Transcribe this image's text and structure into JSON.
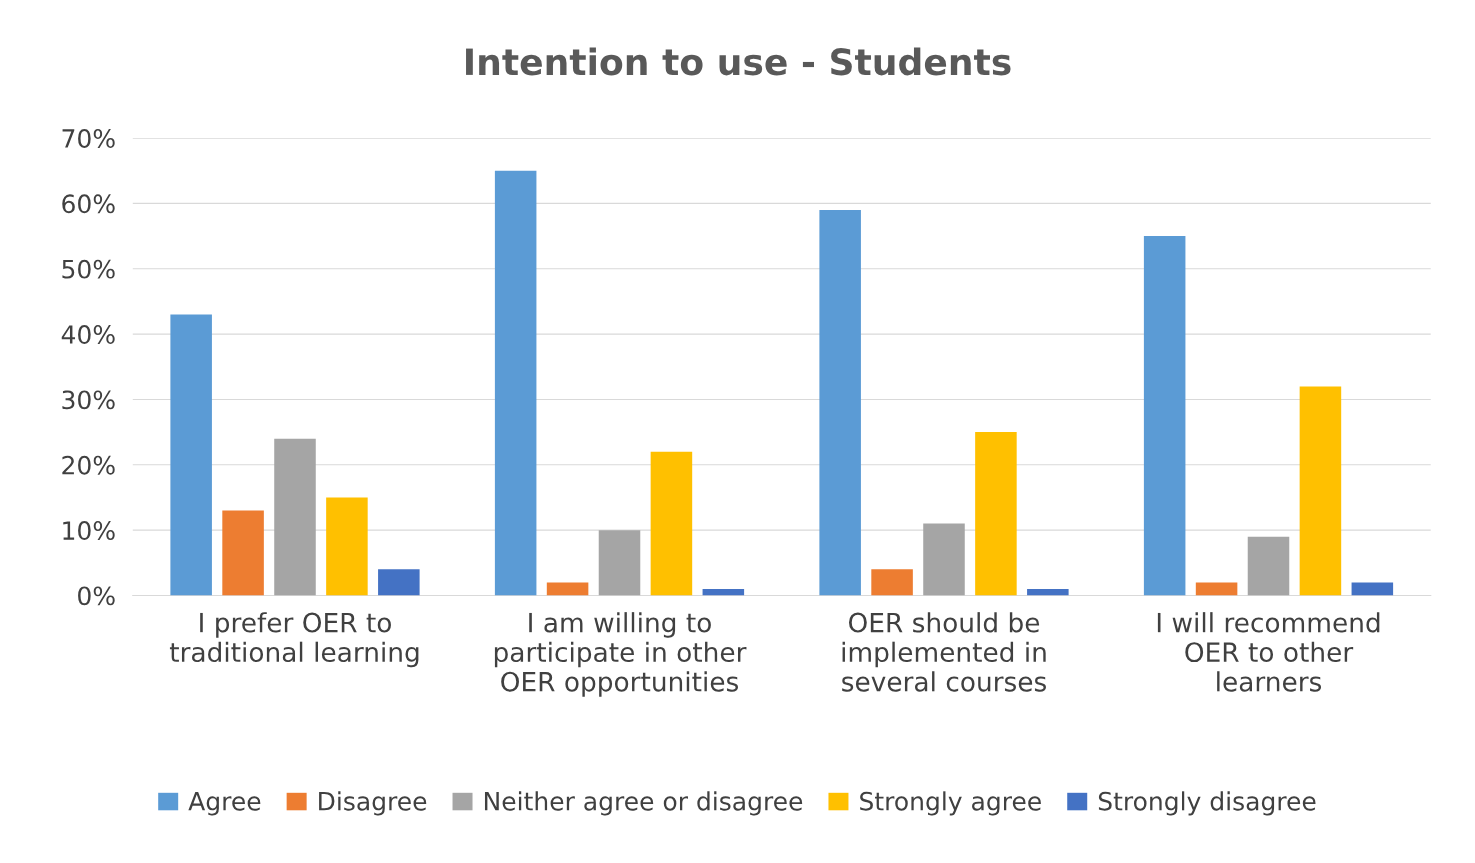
{
  "chart_data": {
    "type": "bar",
    "title": "Intention to use - Students",
    "categories": [
      "I prefer OER to\ntraditional learning",
      "I am willing to\nparticipate in other\nOER opportunities",
      "OER should be\nimplemented in\nseveral courses",
      "I will recommend\nOER to other\nlearners"
    ],
    "series": [
      {
        "name": "Agree",
        "color": "#5b9bd5",
        "values": [
          43,
          65,
          59,
          55
        ]
      },
      {
        "name": "Disagree",
        "color": "#ed7d31",
        "values": [
          13,
          2,
          4,
          2
        ]
      },
      {
        "name": "Neither agree or disagree",
        "color": "#a5a5a5",
        "values": [
          24,
          10,
          11,
          9
        ]
      },
      {
        "name": "Strongly agree",
        "color": "#ffc000",
        "values": [
          15,
          22,
          25,
          32
        ]
      },
      {
        "name": "Strongly disagree",
        "color": "#4472c4",
        "values": [
          4,
          1,
          1,
          2
        ]
      }
    ],
    "ylim": [
      0,
      70
    ],
    "yticks": [
      {
        "value": 0,
        "label": "0%"
      },
      {
        "value": 10,
        "label": "10%"
      },
      {
        "value": 20,
        "label": "20%"
      },
      {
        "value": 30,
        "label": "30%"
      },
      {
        "value": 40,
        "label": "40%"
      },
      {
        "value": 50,
        "label": "50%"
      },
      {
        "value": 60,
        "label": "60%"
      },
      {
        "value": 70,
        "label": "70%"
      }
    ],
    "grid": "y",
    "legend": "bottom"
  }
}
